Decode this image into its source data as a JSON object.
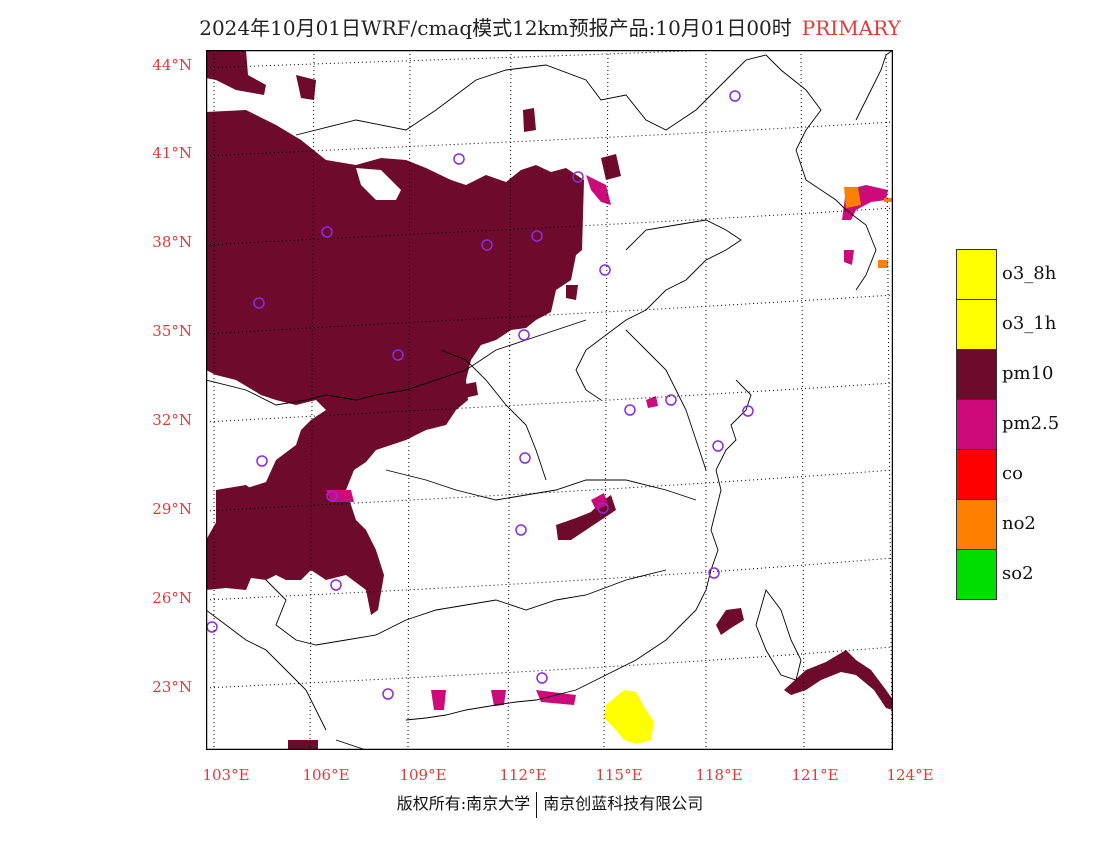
{
  "header": {
    "title": "2024年10月01日WRF/cmaq模式12km预报产品:10月01日00时",
    "tag": "PRIMARY"
  },
  "map": {
    "lat_labels": [
      "44°N",
      "41°N",
      "38°N",
      "35°N",
      "32°N",
      "29°N",
      "26°N",
      "23°N"
    ],
    "lon_labels": [
      "103°E",
      "106°E",
      "109°E",
      "112°E",
      "115°E",
      "118°E",
      "121°E",
      "124°E"
    ],
    "region_colors": {
      "pm10": "#6e0a2b",
      "pm2_5": "#cc0a7a",
      "no2": "#ff7f00",
      "o3": "#ffff00",
      "station_marker": "#8a2be2"
    }
  },
  "legend": {
    "items": [
      {
        "label": "o3_8h",
        "color": "#ffff00"
      },
      {
        "label": "o3_1h",
        "color": "#ffff00"
      },
      {
        "label": "pm10",
        "color": "#6e0a2b"
      },
      {
        "label": "pm2.5",
        "color": "#cc0a7a"
      },
      {
        "label": "co",
        "color": "#ff0000"
      },
      {
        "label": "no2",
        "color": "#ff7f00"
      },
      {
        "label": "so2",
        "color": "#00dd00"
      }
    ]
  },
  "footer": {
    "left": "版权所有:南京大学",
    "right": "南京创蓝科技有限公司"
  }
}
